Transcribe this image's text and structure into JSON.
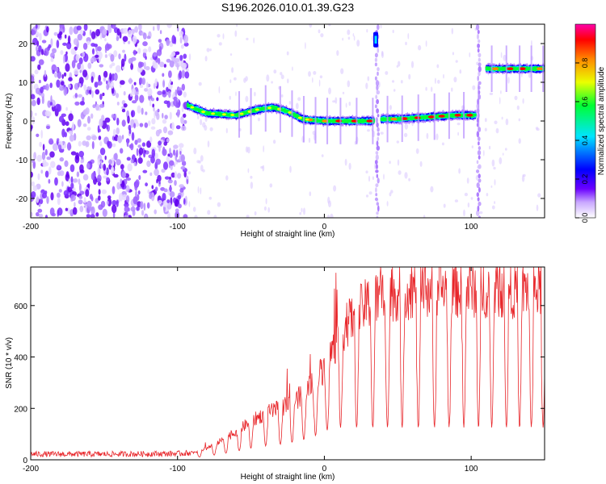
{
  "title": "S196.2026.010.01.39.G23",
  "chart_data": [
    {
      "type": "heatmap",
      "xlabel": "Height of straight line (km)",
      "ylabel": "Frequency (Hz)",
      "xlim": [
        -200,
        150
      ],
      "ylim": [
        -25,
        25
      ],
      "xticks": [
        -200,
        -100,
        0,
        100
      ],
      "yticks": [
        -20,
        -10,
        0,
        10,
        20
      ],
      "colorbar": {
        "label": "Normalized spectral amplitude",
        "range": [
          0.0,
          1.0
        ],
        "ticks": [
          0.0,
          0.2,
          0.4,
          0.6,
          0.8
        ],
        "colormap": [
          "#ffffff",
          "#c9a8ff",
          "#6a00ff",
          "#0000ff",
          "#00e5ff",
          "#00ff33",
          "#eaff00",
          "#ff8800",
          "#ff0000",
          "#ff00aa"
        ]
      },
      "noise_region_km": [
        -200,
        -93
      ],
      "signal_track": {
        "x_km": [
          -93,
          -80,
          -60,
          -45,
          -35,
          -25,
          -15,
          0,
          20,
          33,
          38,
          50,
          70,
          90,
          104,
          110,
          130,
          150
        ],
        "freq_hz": [
          4,
          2,
          1.5,
          3,
          3.5,
          2.5,
          0.5,
          0,
          0,
          0,
          0.5,
          0.5,
          1,
          1.5,
          1.5,
          13.5,
          13.5,
          13.5
        ]
      },
      "dropouts_km": [
        36,
        105
      ],
      "artifact": {
        "x_km": 35,
        "freq_hz": 21
      }
    },
    {
      "type": "line",
      "xlabel": "Height of straight line (km)",
      "ylabel": "SNR (10 * v/v)",
      "xlim": [
        -200,
        150
      ],
      "ylim": [
        0,
        750
      ],
      "xticks": [
        -200,
        -100,
        0,
        100
      ],
      "yticks": [
        0,
        200,
        400,
        600
      ],
      "color": "#e8262a",
      "series": [
        {
          "name": "SNR",
          "x": [
            -200,
            -150,
            -100,
            -90,
            -80,
            -70,
            -60,
            -50,
            -40,
            -30,
            -20,
            -10,
            0,
            10,
            20,
            30,
            40,
            60,
            80,
            100,
            120,
            150
          ],
          "values": [
            22,
            22,
            24,
            27,
            45,
            75,
            110,
            150,
            180,
            200,
            230,
            280,
            360,
            480,
            560,
            610,
            640,
            660,
            665,
            665,
            665,
            660
          ]
        }
      ],
      "dips": {
        "x_km": [
          -95,
          -85,
          -75,
          -67,
          -58,
          -50,
          -40,
          -30,
          -22,
          -14,
          -6,
          2,
          11,
          22,
          33,
          43,
          53,
          64,
          75,
          85,
          95,
          105,
          114,
          124,
          133,
          141,
          149
        ],
        "floor": 125
      }
    }
  ]
}
